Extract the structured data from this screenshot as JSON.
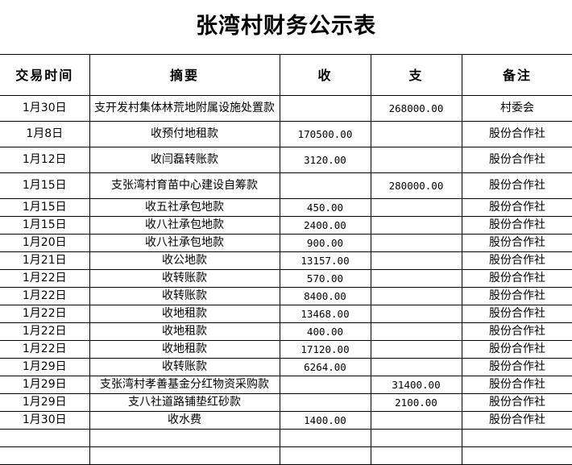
{
  "title": "张湾村财务公示表",
  "columns": [
    "交易时间",
    "摘要",
    "收",
    "支",
    "备注"
  ],
  "rows": [
    {
      "date": "1月30日",
      "summary": "支开发村集体林荒地附属设施处置款",
      "income": "",
      "expense": "268000.00",
      "note": "村委会"
    },
    {
      "date": "1月8日",
      "summary": "收预付地租款",
      "income": "170500.00",
      "expense": "",
      "note": "股份合作社"
    },
    {
      "date": "1月12日",
      "summary": "收闫磊转账款",
      "income": "3120.00",
      "expense": "",
      "note": "股份合作社"
    },
    {
      "date": "1月15日",
      "summary": "支张湾村育苗中心建设自筹款",
      "income": "",
      "expense": "280000.00",
      "note": "股份合作社"
    },
    {
      "date": "1月15日",
      "summary": "收五社承包地款",
      "income": "450.00",
      "expense": "",
      "note": "股份合作社"
    },
    {
      "date": "1月15日",
      "summary": "收八社承包地款",
      "income": "2400.00",
      "expense": "",
      "note": "股份合作社"
    },
    {
      "date": "1月20日",
      "summary": "收八社承包地款",
      "income": "900.00",
      "expense": "",
      "note": "股份合作社"
    },
    {
      "date": "1月21日",
      "summary": "收公地款",
      "income": "13157.00",
      "expense": "",
      "note": "股份合作社"
    },
    {
      "date": "1月22日",
      "summary": "收转账款",
      "income": "570.00",
      "expense": "",
      "note": "股份合作社"
    },
    {
      "date": "1月22日",
      "summary": "收转账款",
      "income": "8400.00",
      "expense": "",
      "note": "股份合作社"
    },
    {
      "date": "1月22日",
      "summary": "收地租款",
      "income": "13468.00",
      "expense": "",
      "note": "股份合作社"
    },
    {
      "date": "1月22日",
      "summary": "收地租款",
      "income": "400.00",
      "expense": "",
      "note": "股份合作社"
    },
    {
      "date": "1月22日",
      "summary": "收地租款",
      "income": "17120.00",
      "expense": "",
      "note": "股份合作社"
    },
    {
      "date": "1月29日",
      "summary": "收转账款",
      "income": "6264.00",
      "expense": "",
      "note": "股份合作社"
    },
    {
      "date": "1月29日",
      "summary": "支张湾村孝善基金分红物资采购款",
      "income": "",
      "expense": "31400.00",
      "note": "股份合作社"
    },
    {
      "date": "1月29日",
      "summary": "支八社道路铺垫红砂款",
      "income": "",
      "expense": "2100.00",
      "note": "股份合作社"
    },
    {
      "date": "1月30日",
      "summary": "收水费",
      "income": "1400.00",
      "expense": "",
      "note": "股份合作社"
    },
    {
      "date": "",
      "summary": "",
      "income": "",
      "expense": "",
      "note": ""
    },
    {
      "date": "",
      "summary": "",
      "income": "",
      "expense": "",
      "note": ""
    }
  ]
}
